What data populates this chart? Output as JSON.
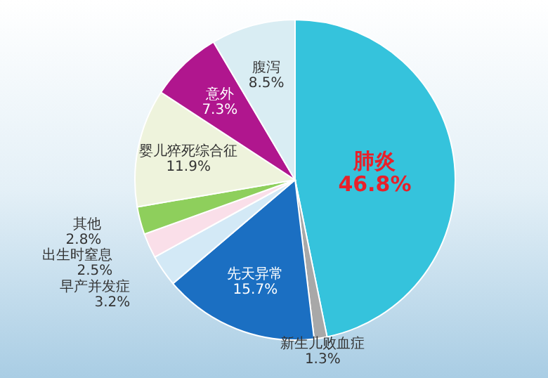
{
  "chart_data": {
    "type": "pie",
    "categories": [
      "肺炎",
      "新生儿败血症",
      "先天异常",
      "早产并发症",
      "出生时窒息",
      "其他",
      "婴儿猝死综合征",
      "意外",
      "腹泻"
    ],
    "values": [
      46.8,
      1.3,
      15.7,
      3.2,
      2.5,
      2.8,
      11.9,
      7.3,
      8.5
    ],
    "value_labels": [
      "46.8%",
      "1.3%",
      "15.7%",
      "3.2%",
      "2.5%",
      "2.8%",
      "11.9%",
      "7.3%",
      "8.5%"
    ],
    "colors": [
      "#35c3dc",
      "#a8a8a8",
      "#1b6fc2",
      "#d3e9f6",
      "#fadfe9",
      "#8ecf5c",
      "#eef3dc",
      "#b0168e",
      "#d9edf3"
    ]
  }
}
